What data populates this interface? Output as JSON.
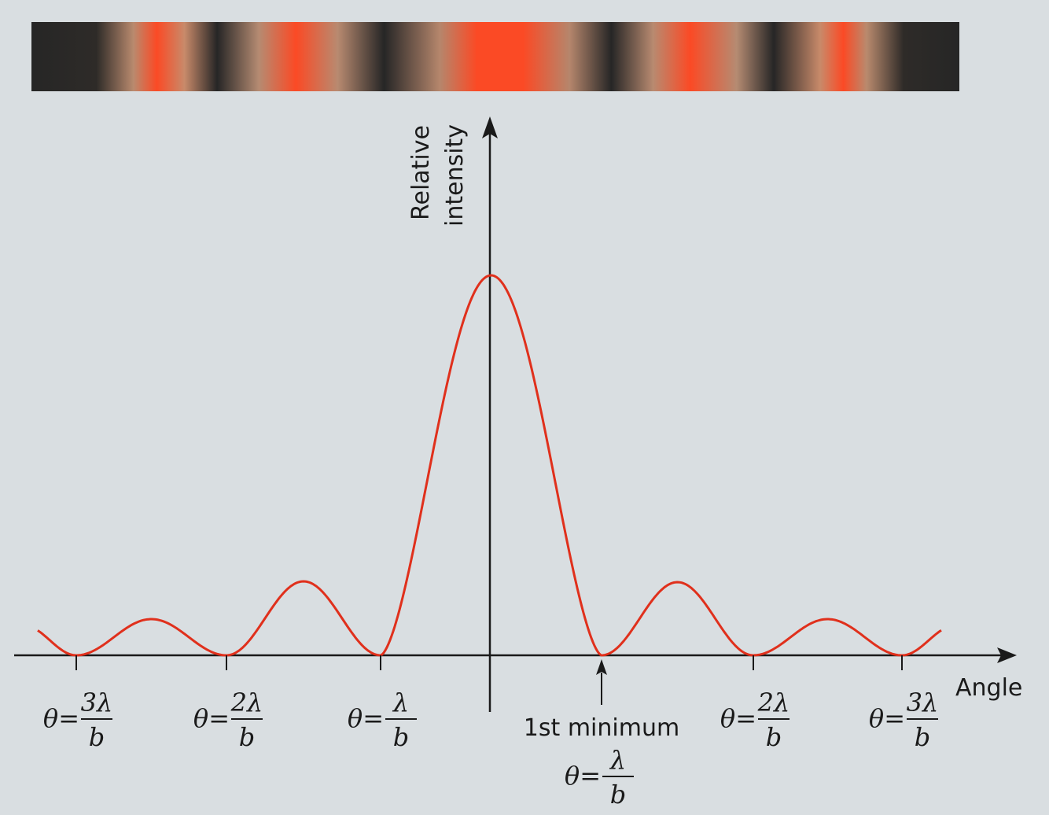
{
  "diagram": {
    "y_axis_label": [
      "Relative",
      "intensity"
    ],
    "x_axis_label": "Angle",
    "ticks": [
      {
        "prefix": "θ=",
        "numerator": "3λ",
        "denominator": "b"
      },
      {
        "prefix": "θ=",
        "numerator": "2λ",
        "denominator": "b"
      },
      {
        "prefix": "θ=",
        "numerator": "λ",
        "denominator": "b"
      },
      {
        "prefix": "θ=",
        "numerator": "2λ",
        "denominator": "b"
      },
      {
        "prefix": "θ=",
        "numerator": "3λ",
        "denominator": "b"
      }
    ],
    "annotation": {
      "label": "1st minimum",
      "prefix": "θ=",
      "numerator": "λ",
      "denominator": "b"
    }
  }
}
